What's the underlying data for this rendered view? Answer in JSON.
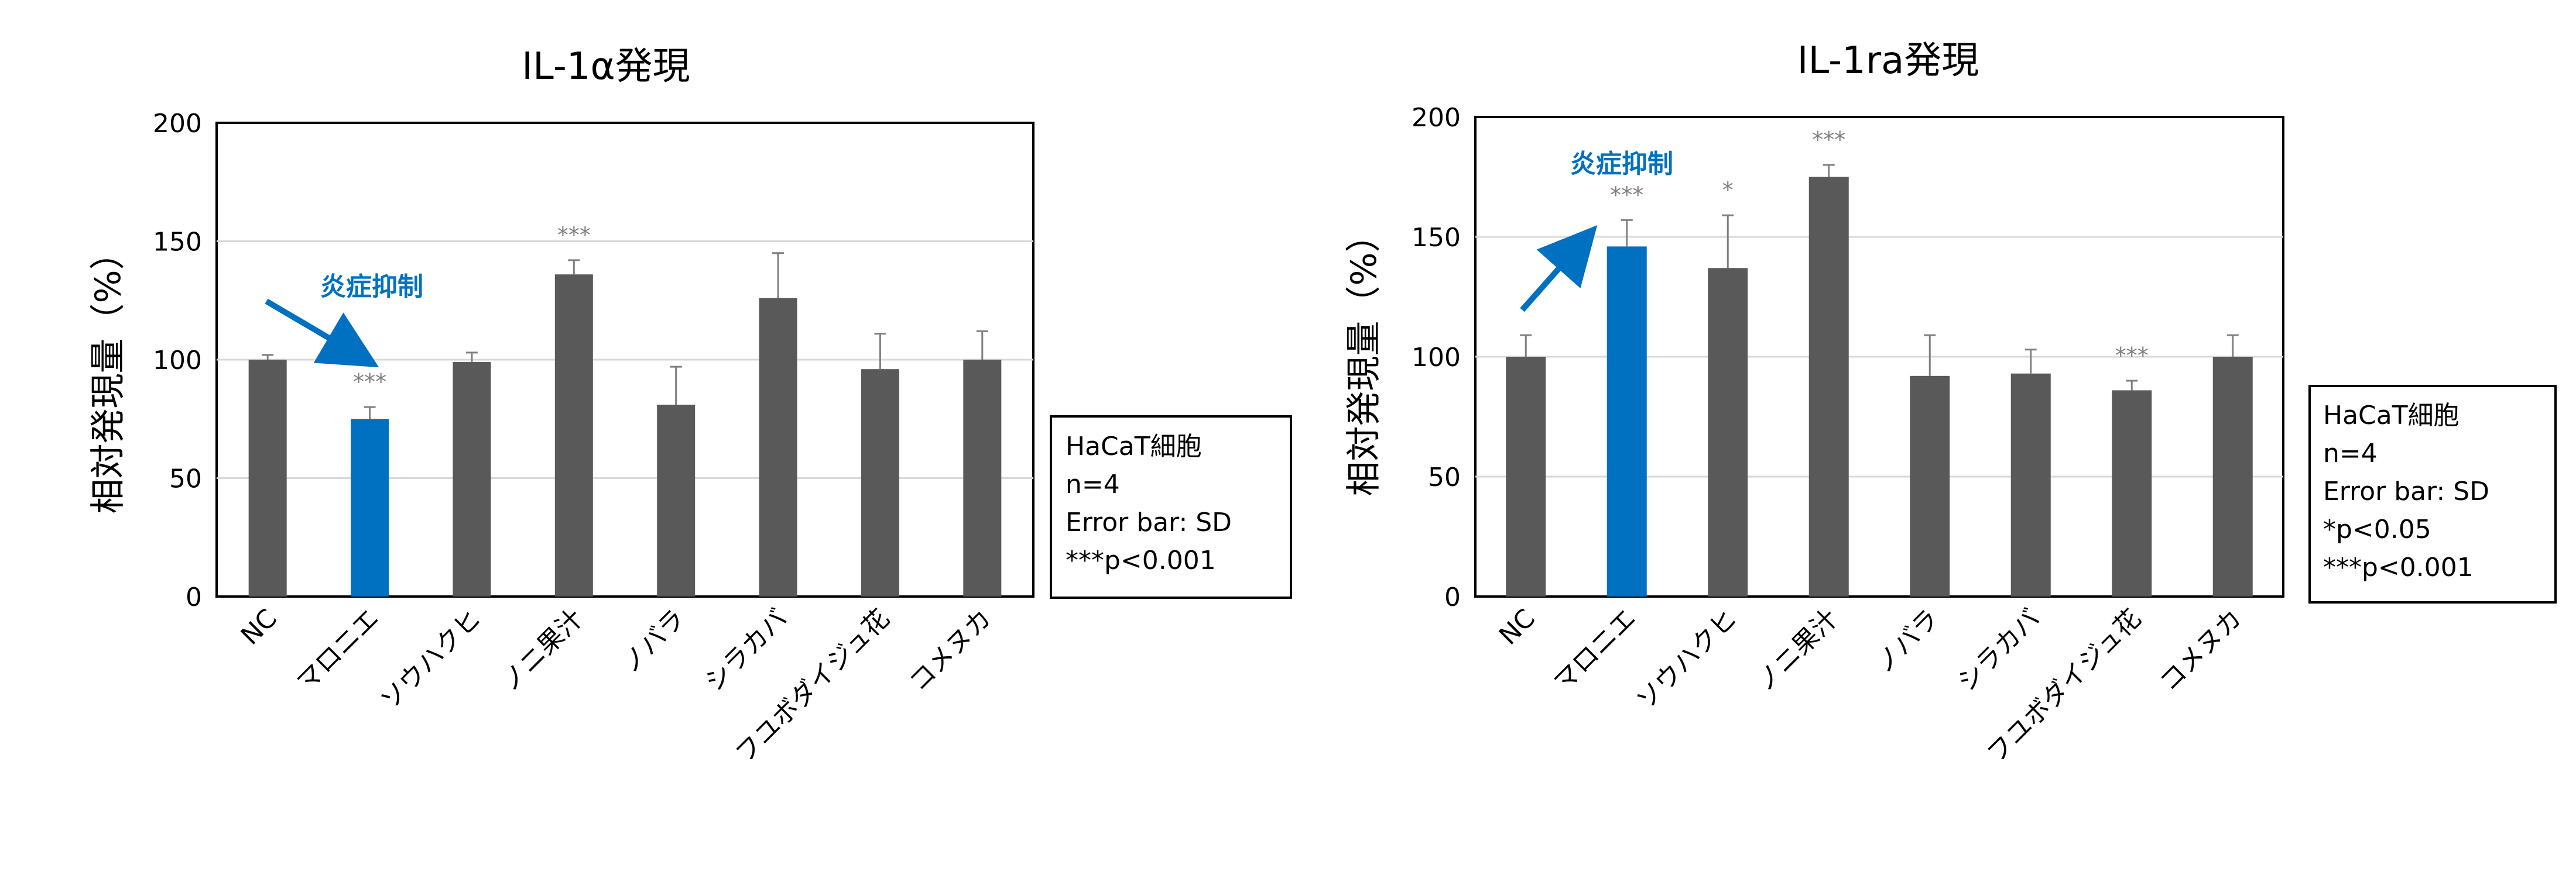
{
  "colors": {
    "bar": "#595959",
    "highlight": "#0070c0",
    "axis": "#000000",
    "grid": "#d9d9d9",
    "errorbar": "#7f7f7f",
    "sig": "#808080"
  },
  "chart_data": [
    {
      "type": "bar",
      "title": "IL-1α発現",
      "ylabel": "相対発現量（%）",
      "xlabel": "",
      "ylim": [
        0,
        200
      ],
      "yticks": [
        "0",
        "50",
        "100",
        "150",
        "200"
      ],
      "grid": true,
      "categories": [
        "NC",
        "マロニエ",
        "ソウハクヒ",
        "ノニ果汁",
        "ノバラ",
        "シラカバ",
        "フユボダイジュ花",
        "コメヌカ"
      ],
      "values": [
        100,
        75,
        99,
        136,
        81,
        126,
        96,
        100
      ],
      "errors": [
        2,
        5,
        4,
        6,
        16,
        19,
        15,
        12
      ],
      "significance": [
        "",
        "***",
        "",
        "***",
        "",
        "",
        "",
        ""
      ],
      "highlight": [
        1
      ],
      "annotation": "炎症抑制",
      "legend": {
        "position": "right",
        "lines": [
          "HaCaT細胞",
          "n=4",
          "Error bar: SD",
          "***p<0.001"
        ]
      }
    },
    {
      "type": "bar",
      "title": "IL-1ra発現",
      "ylabel": "相対発現量（%）",
      "xlabel": "",
      "ylim": [
        0,
        200
      ],
      "yticks": [
        "0",
        "50",
        "100",
        "150",
        "200"
      ],
      "grid": true,
      "categories": [
        "NC",
        "マロニエ",
        "ソウハクヒ",
        "ノニ果汁",
        "ノバラ",
        "シラカバ",
        "フユボダイジュ花",
        "コメヌカ"
      ],
      "values": [
        100,
        146,
        137,
        175,
        92,
        93,
        86,
        100
      ],
      "errors": [
        9,
        11,
        22,
        5,
        17,
        10,
        4,
        9
      ],
      "significance": [
        "",
        "***",
        "*",
        "***",
        "",
        "",
        "***",
        ""
      ],
      "highlight": [
        1
      ],
      "annotation": "炎症抑制",
      "legend": {
        "position": "right",
        "lines": [
          "HaCaT細胞",
          "n=4",
          "Error bar: SD",
          "*p<0.05",
          "***p<0.001"
        ]
      }
    }
  ]
}
